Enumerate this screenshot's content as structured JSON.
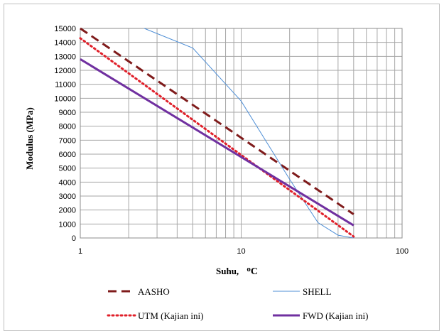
{
  "chart_data": {
    "type": "line",
    "title": "",
    "xlabel": "Suhu, ",
    "xlabel_unit": "oC",
    "ylabel": "Modulus  (MPa)",
    "x_scale": "log",
    "xlim": [
      1,
      100
    ],
    "ylim": [
      0,
      15000
    ],
    "x_ticks": [
      "1",
      "10",
      "100"
    ],
    "y_ticks": [
      "0",
      "1000",
      "2000",
      "3000",
      "4000",
      "5000",
      "6000",
      "7000",
      "8000",
      "9000",
      "10000",
      "11000",
      "12000",
      "13000",
      "14000",
      "15000"
    ],
    "grid": true,
    "legend_position": "bottom",
    "series": [
      {
        "name": "AASHO",
        "color": "#7f1b1b",
        "style": "dashed",
        "points": [
          [
            1,
            15000
          ],
          [
            50,
            1700
          ]
        ]
      },
      {
        "name": "SHELL",
        "color": "#4f8fd6",
        "style": "solid-thin",
        "points": [
          [
            2.5,
            15000
          ],
          [
            5,
            13600
          ],
          [
            10,
            9800
          ],
          [
            20,
            4200
          ],
          [
            30,
            1100
          ],
          [
            40,
            200
          ],
          [
            50,
            0
          ]
        ]
      },
      {
        "name": "UTM (Kajian ini)",
        "color": "#e0202a",
        "style": "dotted",
        "points": [
          [
            1,
            14300
          ],
          [
            50,
            100
          ]
        ]
      },
      {
        "name": "FWD (Kajian ini)",
        "color": "#7030a0",
        "style": "solid-thick",
        "points": [
          [
            1,
            12800
          ],
          [
            50,
            900
          ]
        ]
      }
    ]
  }
}
